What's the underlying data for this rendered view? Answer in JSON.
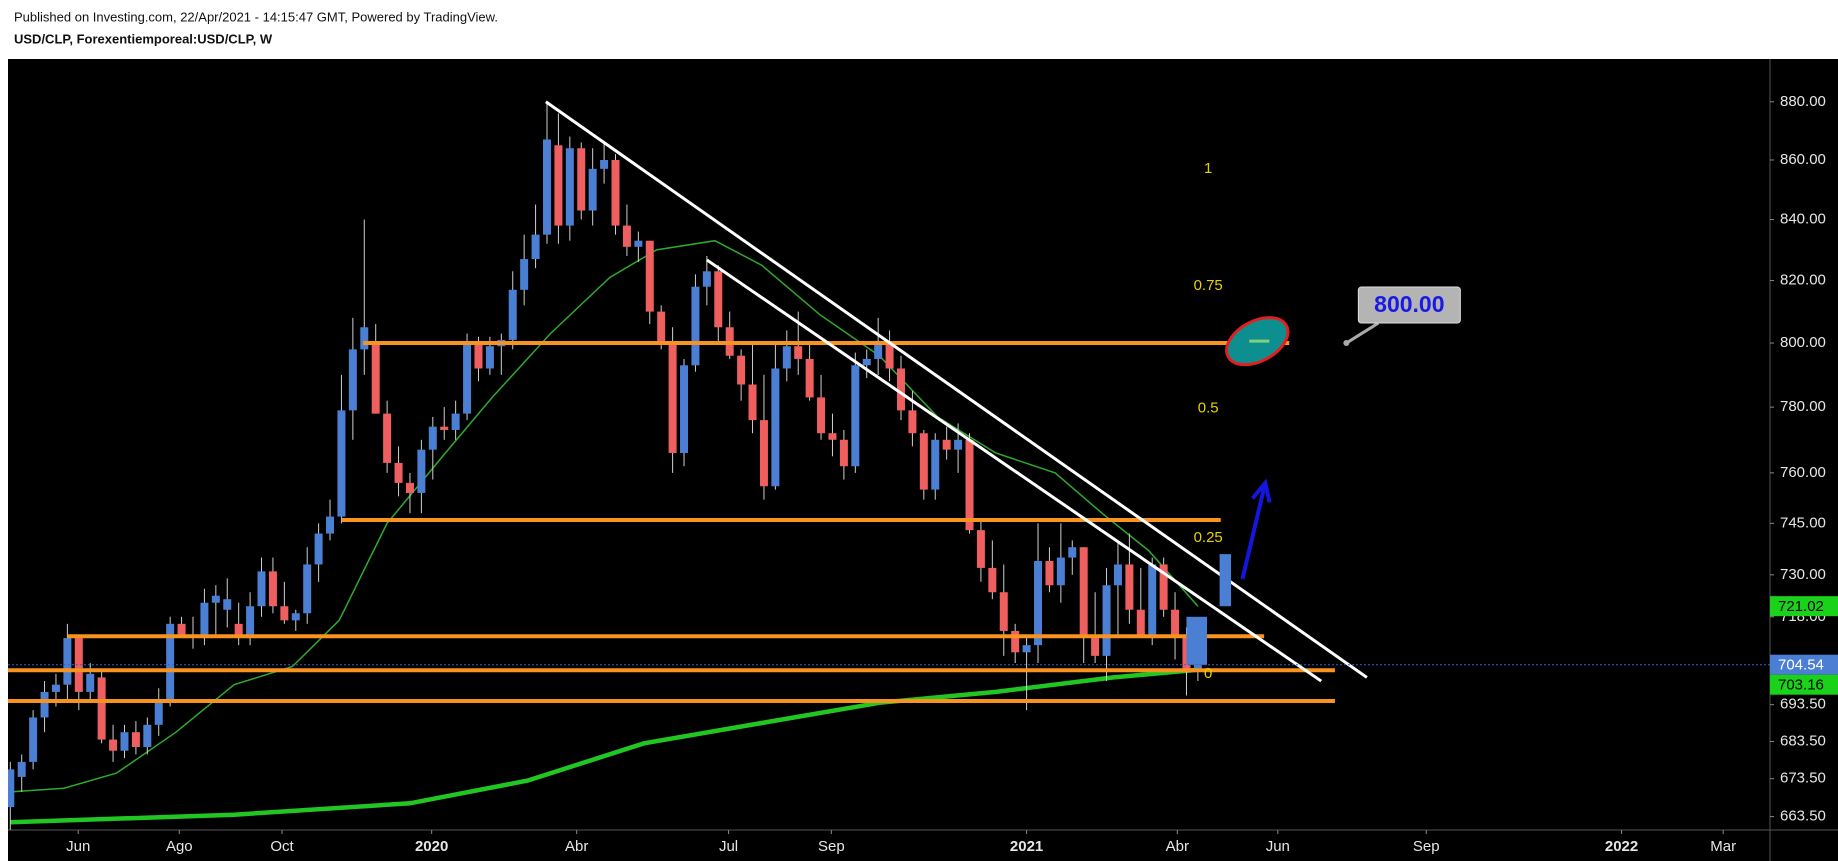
{
  "chart_data": {
    "type": "candlestick",
    "title": "USD/CLP, Forexentiemporeal:USD/CLP, W",
    "subtitle": "Published on Investing.com, 22/Apr/2021 - 14:15:47 GMT, Powered by TradingView.",
    "log_scale": true,
    "up_color": "#4a7fd4",
    "down_color": "#ef5f5f",
    "xlim": [
      -0.2,
      154.1
    ],
    "ylim": [
      660,
      895
    ],
    "xticks": [
      {
        "value": 5.95,
        "label": "Jun"
      },
      {
        "value": 14.8,
        "label": "Ago"
      },
      {
        "value": 23.8,
        "label": "Oct"
      },
      {
        "value": 36.9,
        "label": "2020"
      },
      {
        "value": 49.6,
        "label": "Abr"
      },
      {
        "value": 62.9,
        "label": "Jul"
      },
      {
        "value": 71.9,
        "label": "Sep"
      },
      {
        "value": 89.0,
        "label": "2021"
      },
      {
        "value": 102.2,
        "label": "Abr"
      },
      {
        "value": 111.0,
        "label": "Jun"
      },
      {
        "value": 124.0,
        "label": "Sep"
      },
      {
        "value": 141.1,
        "label": "2022"
      },
      {
        "value": 150.0,
        "label": "Mar"
      }
    ],
    "yticks": [
      {
        "value": 880,
        "label": "880.00"
      },
      {
        "value": 860,
        "label": "860.00"
      },
      {
        "value": 840,
        "label": "840.00"
      },
      {
        "value": 820,
        "label": "820.00"
      },
      {
        "value": 800,
        "label": "800.00"
      },
      {
        "value": 780,
        "label": "780.00"
      },
      {
        "value": 760,
        "label": "760.00"
      },
      {
        "value": 745,
        "label": "745.00"
      },
      {
        "value": 730,
        "label": "730.00"
      },
      {
        "value": 718,
        "label": "718.00"
      },
      {
        "value": 693.5,
        "label": "693.50"
      },
      {
        "value": 683.5,
        "label": "683.50"
      },
      {
        "value": 673.5,
        "label": "673.50"
      },
      {
        "value": 663.5,
        "label": "663.50"
      }
    ],
    "ohlc": [
      [
        666,
        678,
        660,
        676
      ],
      [
        674,
        680,
        670,
        678
      ],
      [
        678,
        692,
        676,
        690
      ],
      [
        690,
        700,
        686,
        697
      ],
      [
        697,
        702,
        693,
        699
      ],
      [
        699,
        716,
        694,
        712
      ],
      [
        712,
        713,
        692,
        697
      ],
      [
        697,
        705,
        694,
        702
      ],
      [
        701,
        703,
        683,
        684
      ],
      [
        684,
        688,
        678,
        681
      ],
      [
        681,
        688,
        679,
        686
      ],
      [
        686,
        689,
        680,
        682
      ],
      [
        682,
        690,
        680,
        688
      ],
      [
        688,
        698,
        685,
        695
      ],
      [
        695,
        718,
        693,
        716
      ],
      [
        716,
        718,
        712,
        713
      ],
      [
        713,
        718,
        709,
        712
      ],
      [
        712,
        726,
        710,
        722
      ],
      [
        722,
        727,
        713,
        724
      ],
      [
        720,
        729,
        715,
        723
      ],
      [
        716,
        722,
        710,
        713
      ],
      [
        712,
        725,
        710,
        721
      ],
      [
        721,
        735,
        718,
        731
      ],
      [
        731,
        735,
        719,
        721
      ],
      [
        721,
        728,
        716,
        717
      ],
      [
        717,
        720,
        714,
        719
      ],
      [
        719,
        738,
        716,
        733
      ],
      [
        733,
        745,
        728,
        742
      ],
      [
        742,
        752,
        740,
        747
      ],
      [
        747,
        790,
        745,
        779
      ],
      [
        779,
        808,
        770,
        798
      ],
      [
        798,
        840,
        790,
        805
      ],
      [
        800,
        806,
        778,
        778
      ],
      [
        778,
        782,
        760,
        763
      ],
      [
        763,
        768,
        753,
        757
      ],
      [
        757,
        760,
        748,
        754
      ],
      [
        754,
        770,
        748,
        767
      ],
      [
        767,
        777,
        758,
        774
      ],
      [
        774,
        780,
        770,
        773
      ],
      [
        773,
        782,
        770,
        778
      ],
      [
        778,
        803,
        776,
        800
      ],
      [
        800,
        802,
        788,
        792
      ],
      [
        792,
        802,
        790,
        799
      ],
      [
        799,
        803,
        790,
        801
      ],
      [
        801,
        823,
        798,
        817
      ],
      [
        817,
        835,
        812,
        827
      ],
      [
        827,
        845,
        824,
        835
      ],
      [
        835,
        880,
        832,
        867
      ],
      [
        865,
        876,
        832,
        838
      ],
      [
        838,
        868,
        833,
        864
      ],
      [
        864,
        866,
        840,
        843
      ],
      [
        843,
        864,
        838,
        857
      ],
      [
        857,
        866,
        852,
        860
      ],
      [
        860,
        862,
        835,
        838
      ],
      [
        838,
        845,
        828,
        831
      ],
      [
        831,
        836,
        826,
        833
      ],
      [
        833,
        833,
        806,
        810
      ],
      [
        810,
        812,
        798,
        800
      ],
      [
        800,
        805,
        760,
        766
      ],
      [
        766,
        795,
        762,
        793
      ],
      [
        793,
        822,
        791,
        818
      ],
      [
        818,
        828,
        812,
        823
      ],
      [
        823,
        825,
        800,
        805
      ],
      [
        805,
        810,
        795,
        796
      ],
      [
        796,
        798,
        782,
        787
      ],
      [
        787,
        800,
        772,
        776
      ],
      [
        776,
        790,
        752,
        756
      ],
      [
        756,
        800,
        755,
        792
      ],
      [
        792,
        804,
        788,
        799
      ],
      [
        799,
        810,
        790,
        795
      ],
      [
        795,
        800,
        782,
        783
      ],
      [
        783,
        790,
        770,
        772
      ],
      [
        772,
        778,
        765,
        770
      ],
      [
        770,
        773,
        758,
        762
      ],
      [
        762,
        797,
        760,
        793
      ],
      [
        793,
        798,
        789,
        795
      ],
      [
        795,
        808,
        790,
        800
      ],
      [
        800,
        804,
        788,
        792
      ],
      [
        792,
        796,
        776,
        779
      ],
      [
        779,
        785,
        768,
        772
      ],
      [
        772,
        773,
        752,
        755
      ],
      [
        755,
        772,
        752,
        770
      ],
      [
        770,
        774,
        764,
        767
      ],
      [
        767,
        775,
        760,
        770
      ],
      [
        770,
        772,
        742,
        743
      ],
      [
        743,
        746,
        728,
        732
      ],
      [
        732,
        740,
        723,
        725
      ],
      [
        725,
        733,
        707,
        714
      ],
      [
        714,
        716,
        705,
        708
      ],
      [
        708,
        712,
        692,
        710
      ],
      [
        710,
        745,
        705,
        734
      ],
      [
        734,
        738,
        725,
        727
      ],
      [
        727,
        745,
        722,
        735
      ],
      [
        735,
        740,
        730,
        738
      ],
      [
        738,
        738,
        705,
        712
      ],
      [
        712,
        725,
        705,
        707
      ],
      [
        707,
        732,
        700,
        727
      ],
      [
        727,
        740,
        712,
        733
      ],
      [
        733,
        742,
        716,
        720
      ],
      [
        720,
        732,
        712,
        713
      ],
      [
        713,
        735,
        710,
        733
      ],
      [
        733,
        735,
        718,
        720
      ],
      [
        720,
        725,
        706,
        712
      ],
      [
        712,
        715,
        696,
        703
      ],
      [
        703,
        707,
        700,
        704.54
      ]
    ],
    "ma_fast": {
      "color": "#2eaa2e",
      "x": [
        0,
        4.7,
        9.3,
        14.5,
        19.6,
        24.7,
        28.8,
        33,
        38.1,
        42.2,
        47.3,
        52.5,
        56.6,
        61.7,
        65.8,
        70.9,
        76.1,
        81.2,
        86.3,
        91.5,
        95.6,
        99.7,
        104
      ],
      "values": [
        670,
        671,
        675,
        686,
        699,
        704,
        717,
        745,
        766,
        783,
        803,
        821,
        830,
        833,
        825,
        809,
        796,
        777,
        766,
        760,
        748,
        737,
        721.02
      ]
    },
    "ma_slow": {
      "color": "#22c622",
      "x": [
        0,
        19.6,
        35,
        45.3,
        55.5,
        65.8,
        76.1,
        86.3,
        96.6,
        104
      ],
      "values": [
        662,
        664,
        667,
        673,
        683,
        688.5,
        694,
        697,
        701,
        703.16
      ]
    },
    "hline_color": "#f7931e",
    "hlines": [
      {
        "x": [
          30.9,
          112
        ],
        "value": 800
      },
      {
        "x": [
          29,
          106
        ],
        "value": 746
      },
      {
        "x": [
          5,
          109.8
        ],
        "value": 712.5
      },
      {
        "x": [
          -0.2,
          116
        ],
        "value": 703
      },
      {
        "x": [
          -0.2,
          116
        ],
        "value": 694.5
      }
    ],
    "trend_color": "#ffffff",
    "trendlines": [
      {
        "x": [
          46.9,
          118.8
        ],
        "y": [
          880,
          701
        ]
      },
      {
        "x": [
          61,
          114.8
        ],
        "y": [
          826.7,
          700
        ]
      }
    ],
    "fib_color": "#e6d200",
    "fib_x": 104.9,
    "fib_range": [
      702,
      857
    ],
    "fib_levels": [
      1,
      0.75,
      0.5,
      0.25,
      0
    ],
    "boxes": [
      {
        "x": [
          103,
          104.8
        ],
        "y": [
          704.5,
          718
        ]
      },
      {
        "x": [
          105.9,
          106.9
        ],
        "y": [
          721,
          736
        ]
      }
    ],
    "arrow": {
      "color": "#1515e0",
      "x": [
        107.9,
        109.9
      ],
      "y": [
        728.8,
        757
      ]
    },
    "ellipse": {
      "x": 109.2,
      "y": 800.6
    },
    "callout": {
      "x": 117,
      "value": 800,
      "label": "800.00"
    }
  }
}
